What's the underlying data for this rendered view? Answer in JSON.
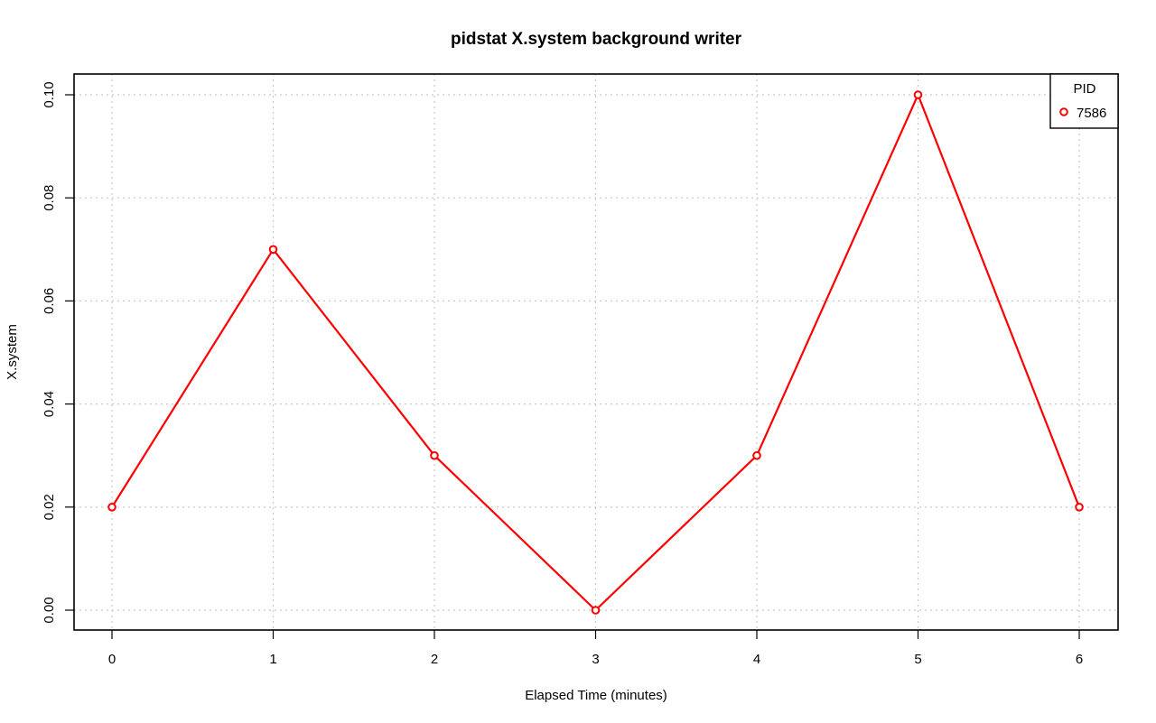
{
  "chart_data": {
    "type": "line",
    "title": "pidstat X.system background writer",
    "xlabel": "Elapsed Time (minutes)",
    "ylabel": "X.system",
    "x": [
      0,
      1,
      2,
      3,
      4,
      5,
      6
    ],
    "xlim": [
      0,
      6
    ],
    "ylim": [
      0,
      0.1
    ],
    "x_ticks": [
      "0",
      "1",
      "2",
      "3",
      "4",
      "5",
      "6"
    ],
    "y_ticks": [
      "0.00",
      "0.02",
      "0.04",
      "0.06",
      "0.08",
      "0.10"
    ],
    "grid": true,
    "legend": {
      "title": "PID",
      "placement": "top-right"
    },
    "series": [
      {
        "name": "7586",
        "color": "#ff0000",
        "values": [
          0.02,
          0.07,
          0.03,
          0.0,
          0.03,
          0.1,
          0.02
        ]
      }
    ]
  }
}
